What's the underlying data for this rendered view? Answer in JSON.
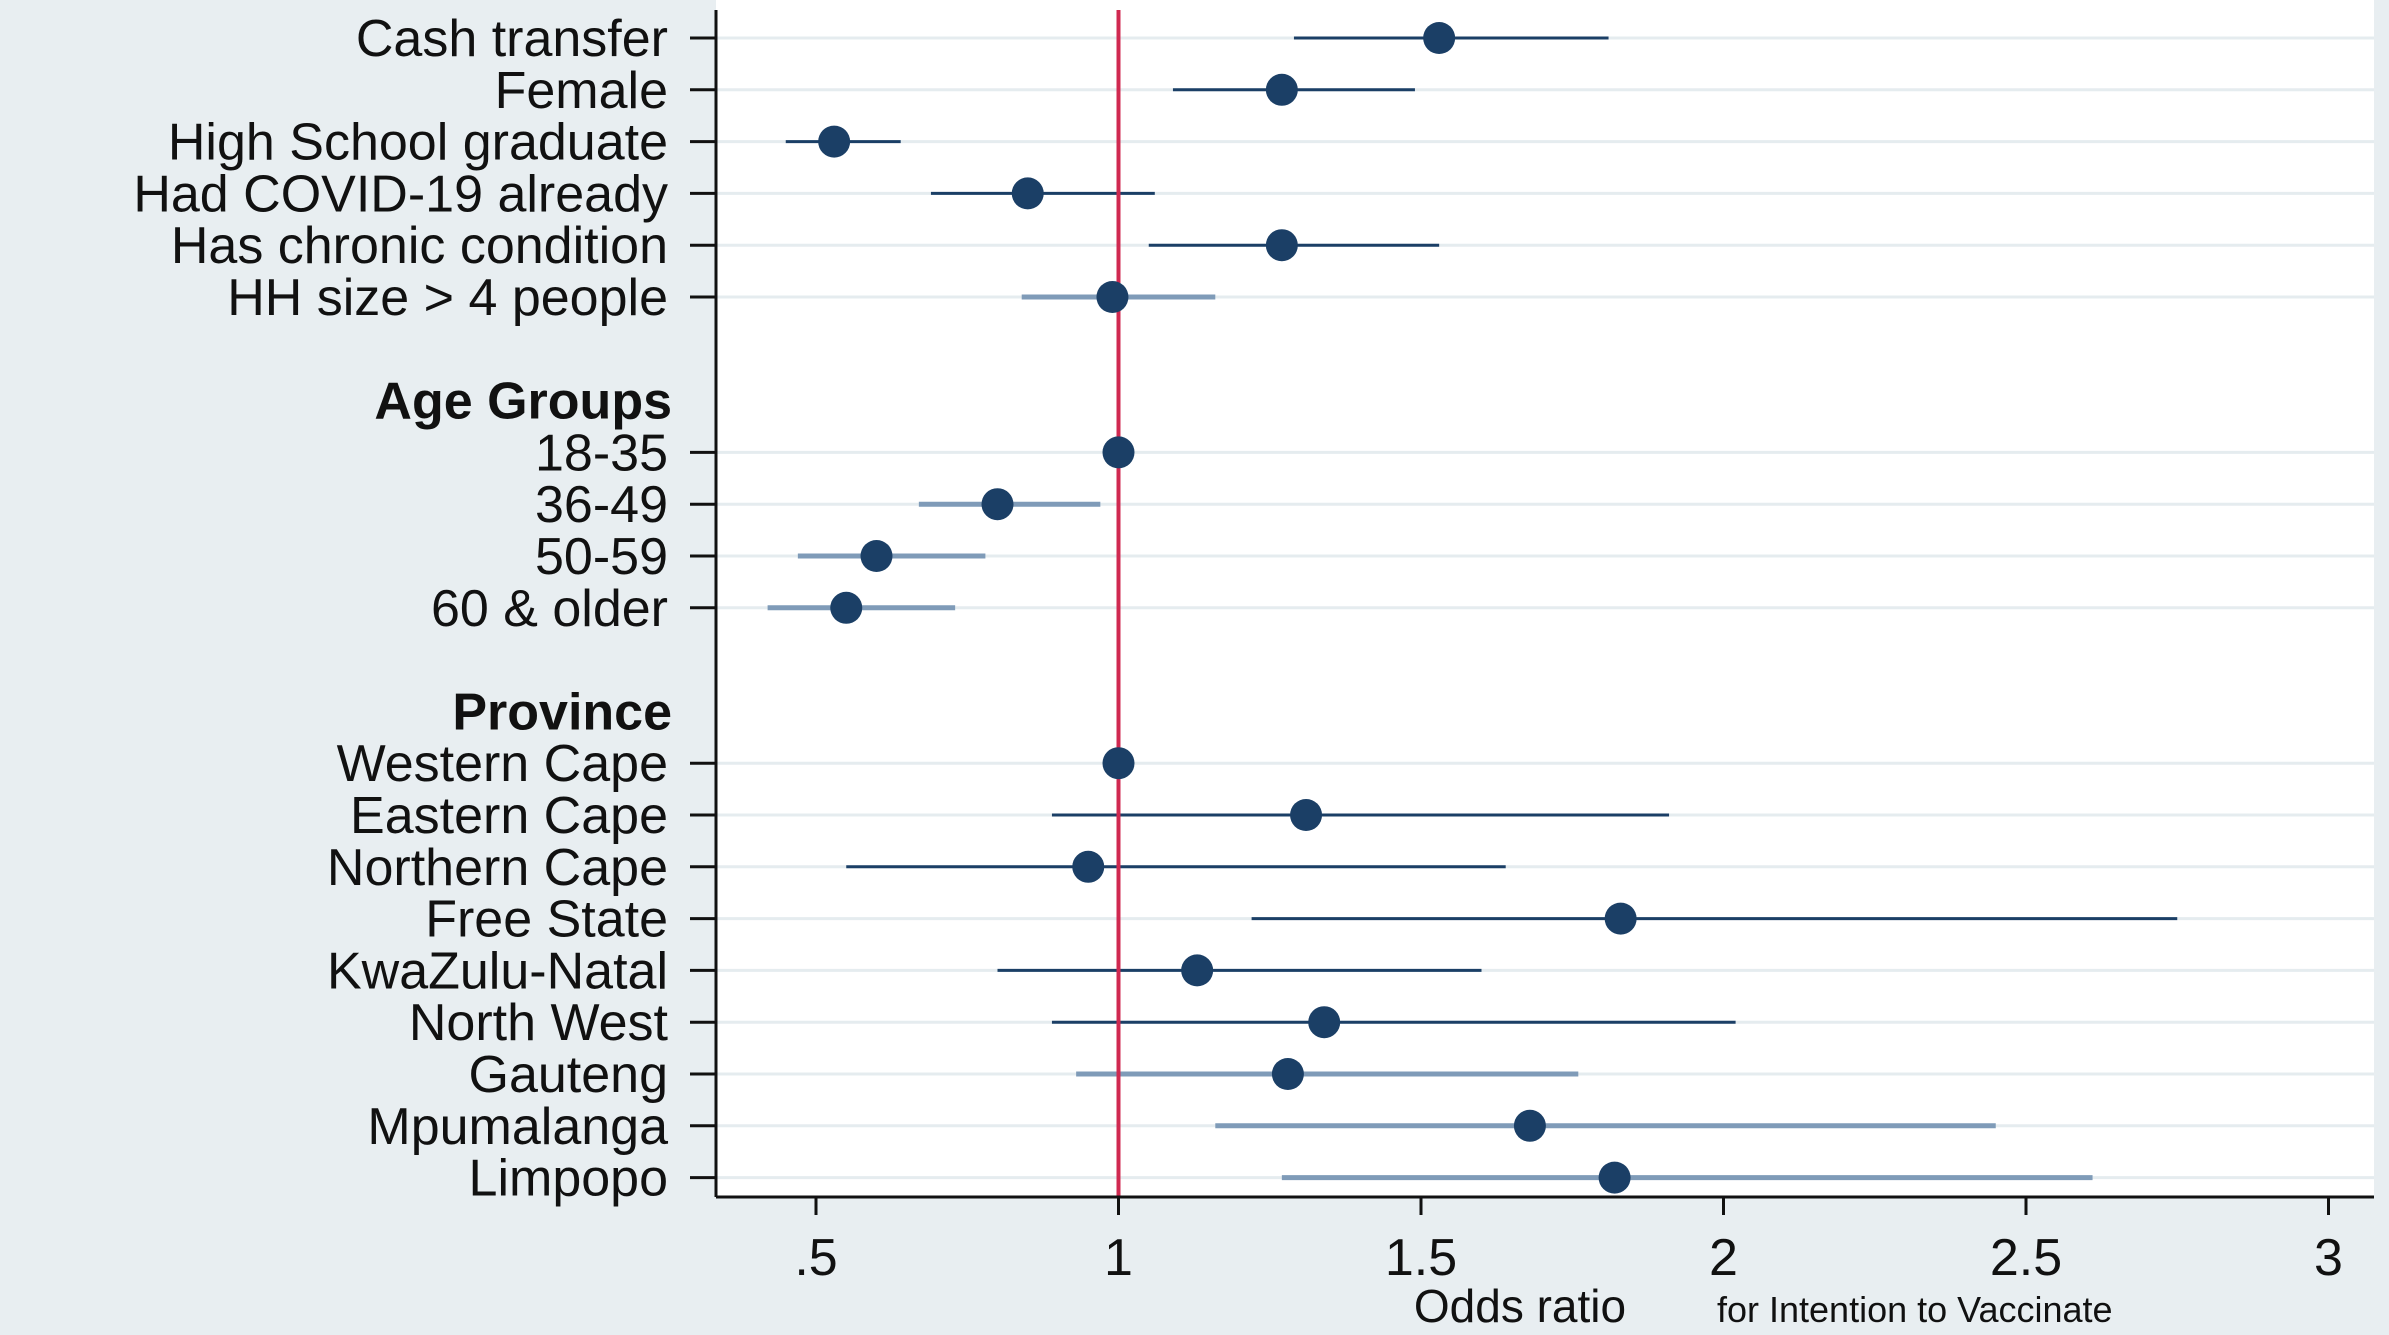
{
  "chart_data": {
    "type": "scatter",
    "subtype": "forest-plot-odds-ratios",
    "xlabel": "Odds ratio",
    "xlabel_suffix": "for Intention to Vaccinate",
    "xlim": [
      0.35,
      3.08
    ],
    "xticks": [
      0.5,
      1,
      1.5,
      2,
      2.5,
      3
    ],
    "xtick_labels": [
      ".5",
      "1",
      "1.5",
      "2",
      "2.5",
      "3"
    ],
    "reference_line": 1,
    "grid": "horizontal",
    "colors": {
      "background": "#e8eef1",
      "plot_background": "#ffffff",
      "gridline": "#e5ecef",
      "point": "#1b3f66",
      "ci_dark": "#1b3f66",
      "ci_light": "#7f9bb8",
      "reference_line": "#d02950"
    },
    "rows": [
      {
        "label": "Cash transfer",
        "header": false,
        "or": 1.53,
        "lo": 1.29,
        "hi": 1.81,
        "ci_style": "dark"
      },
      {
        "label": "Female",
        "header": false,
        "or": 1.27,
        "lo": 1.09,
        "hi": 1.49,
        "ci_style": "dark"
      },
      {
        "label": "High School graduate",
        "header": false,
        "or": 0.53,
        "lo": 0.45,
        "hi": 0.64,
        "ci_style": "dark"
      },
      {
        "label": "Had COVID-19 already",
        "header": false,
        "or": 0.85,
        "lo": 0.69,
        "hi": 1.06,
        "ci_style": "dark"
      },
      {
        "label": "Has chronic condition",
        "header": false,
        "or": 1.27,
        "lo": 1.05,
        "hi": 1.53,
        "ci_style": "dark"
      },
      {
        "label": "HH size > 4 people",
        "header": false,
        "or": 0.99,
        "lo": 0.84,
        "hi": 1.16,
        "ci_style": "light"
      },
      {
        "label": "",
        "header": false,
        "or": null
      },
      {
        "label": "Age Groups",
        "header": true,
        "or": null
      },
      {
        "label": "18-35",
        "header": false,
        "or": 1.0,
        "lo": null,
        "hi": null,
        "ci_style": "dark"
      },
      {
        "label": "36-49",
        "header": false,
        "or": 0.8,
        "lo": 0.67,
        "hi": 0.97,
        "ci_style": "light"
      },
      {
        "label": "50-59",
        "header": false,
        "or": 0.6,
        "lo": 0.47,
        "hi": 0.78,
        "ci_style": "light"
      },
      {
        "label": "60 & older",
        "header": false,
        "or": 0.55,
        "lo": 0.42,
        "hi": 0.73,
        "ci_style": "light"
      },
      {
        "label": "",
        "header": false,
        "or": null
      },
      {
        "label": "Province",
        "header": true,
        "or": null
      },
      {
        "label": "Western Cape",
        "header": false,
        "or": 1.0,
        "lo": null,
        "hi": null,
        "ci_style": "dark"
      },
      {
        "label": "Eastern Cape",
        "header": false,
        "or": 1.31,
        "lo": 0.89,
        "hi": 1.91,
        "ci_style": "dark"
      },
      {
        "label": "Northern Cape",
        "header": false,
        "or": 0.95,
        "lo": 0.55,
        "hi": 1.64,
        "ci_style": "dark"
      },
      {
        "label": "Free State",
        "header": false,
        "or": 1.83,
        "lo": 1.22,
        "hi": 2.75,
        "ci_style": "dark"
      },
      {
        "label": "KwaZulu-Natal",
        "header": false,
        "or": 1.13,
        "lo": 0.8,
        "hi": 1.6,
        "ci_style": "dark"
      },
      {
        "label": "North West",
        "header": false,
        "or": 1.34,
        "lo": 0.89,
        "hi": 2.02,
        "ci_style": "dark"
      },
      {
        "label": "Gauteng",
        "header": false,
        "or": 1.28,
        "lo": 0.93,
        "hi": 1.76,
        "ci_style": "light"
      },
      {
        "label": "Mpumalanga",
        "header": false,
        "or": 1.68,
        "lo": 1.16,
        "hi": 2.45,
        "ci_style": "light"
      },
      {
        "label": "Limpopo",
        "header": false,
        "or": 1.82,
        "lo": 1.27,
        "hi": 2.61,
        "ci_style": "light"
      }
    ]
  }
}
